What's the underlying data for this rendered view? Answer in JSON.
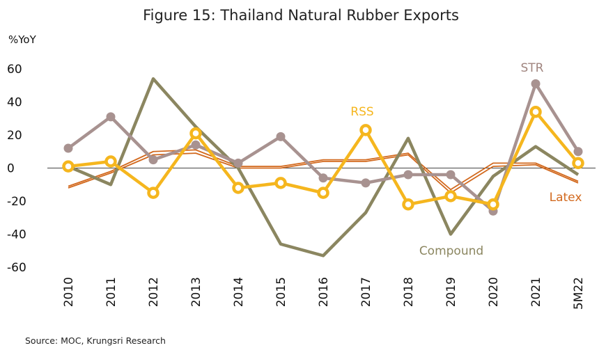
{
  "chart_data": {
    "type": "line",
    "title": "Figure 15: Thailand Natural Rubber Exports",
    "ylabel": "%YoY",
    "xlabel": "",
    "ylim": [
      -60,
      60
    ],
    "yticks": [
      60,
      40,
      20,
      0,
      -20,
      -40,
      -60
    ],
    "categories": [
      "2010",
      "2011",
      "2012",
      "2013",
      "2014",
      "2015",
      "2016",
      "2017",
      "2018",
      "2019",
      "2020",
      "2021",
      "5M22"
    ],
    "series": [
      {
        "name": "Latex",
        "color": "#D2691E",
        "values": [
          -11,
          -2,
          10,
          11,
          1,
          1,
          5,
          5,
          9,
          -13,
          3,
          3,
          -8
        ]
      },
      {
        "name": "Latex (outline)",
        "color": "#D2691E",
        "values": [
          -12,
          -3,
          8,
          9,
          0,
          0,
          4,
          4,
          8,
          -15,
          1,
          2,
          -9
        ]
      },
      {
        "name": "Compound",
        "color": "#8B8660",
        "values": [
          1,
          -10,
          54,
          25,
          0,
          -46,
          -53,
          -27,
          18,
          -40,
          -5,
          13,
          -4
        ]
      },
      {
        "name": "STR",
        "color": "#A89290",
        "values": [
          12,
          31,
          5,
          14,
          3,
          19,
          -6,
          -9,
          -4,
          -4,
          -26,
          51,
          10
        ]
      },
      {
        "name": "RSS",
        "color": "#F5B61E",
        "values": [
          1,
          4,
          -15,
          21,
          -12,
          -9,
          -15,
          23,
          -22,
          -17,
          -22,
          34,
          3
        ]
      }
    ],
    "labels": {
      "str": "STR",
      "rss": "RSS",
      "latex": "Latex",
      "compound": "Compound"
    }
  },
  "source": "Source: MOC, Krungsri Research"
}
